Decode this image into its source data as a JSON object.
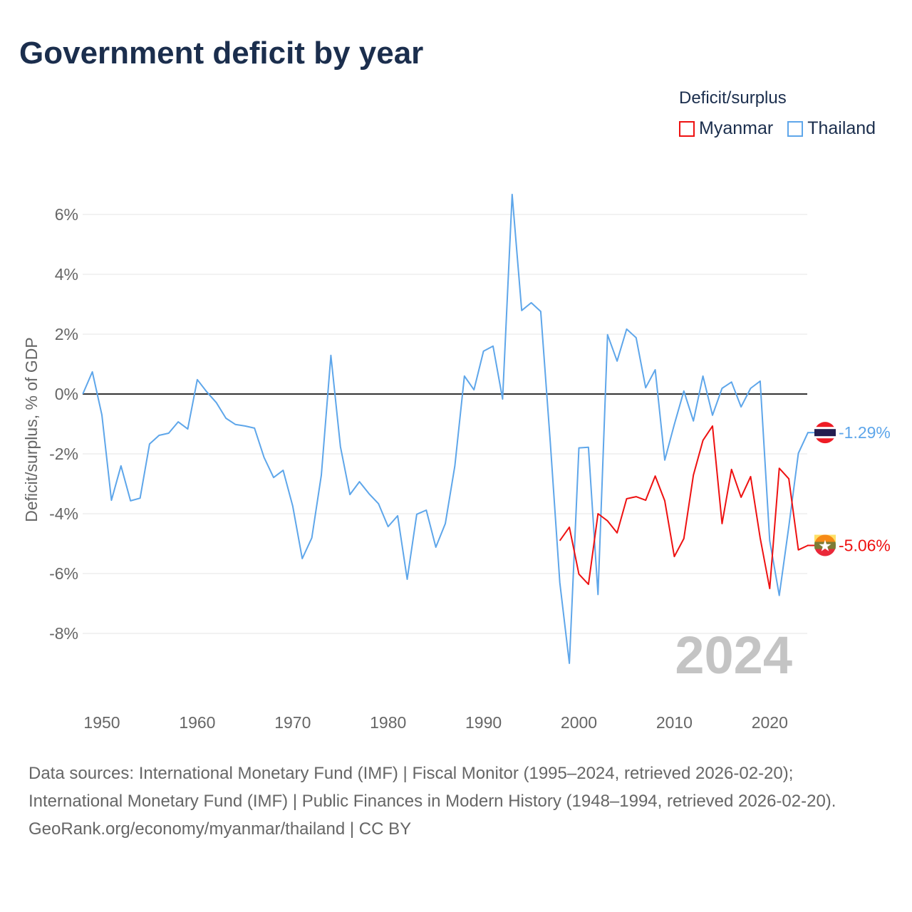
{
  "title": "Government deficit by year",
  "legend": {
    "title": "Deficit/surplus",
    "items": [
      {
        "name": "Myanmar",
        "color": "#ee1111"
      },
      {
        "name": "Thailand",
        "color": "#5ea6ea"
      }
    ]
  },
  "footer": {
    "sources": "Data sources: International Monetary Fund (IMF) | Fiscal Monitor (1995–2024, retrieved 2026-02-20); International Monetary Fund (IMF) | Public Finances in Modern History (1948–1994, retrieved 2026-02-20).",
    "credit": "GeoRank.org/economy/myanmar/thailand | CC BY"
  },
  "chart_data": {
    "type": "line",
    "title": "Government deficit by year",
    "ylabel": "Deficit/surplus, % of GDP",
    "xlabel": "",
    "xlim": [
      1948,
      2024
    ],
    "ylim": [
      -10,
      7
    ],
    "x_ticks": [
      "1950",
      "1960",
      "1970",
      "1980",
      "1990",
      "2000",
      "2010",
      "2020"
    ],
    "y_ticks": [
      {
        "value": 6,
        "label": "6%"
      },
      {
        "value": 4,
        "label": "4%"
      },
      {
        "value": 2,
        "label": "2%"
      },
      {
        "value": 0,
        "label": "0%"
      },
      {
        "value": -2,
        "label": "-2%"
      },
      {
        "value": -4,
        "label": "-4%"
      },
      {
        "value": -6,
        "label": "-6%"
      },
      {
        "value": -8,
        "label": "-8%"
      }
    ],
    "year_watermark": "2024",
    "grid": true,
    "legend_position": "top-right",
    "series": [
      {
        "name": "Thailand",
        "color": "#5ea6ea",
        "end_label": "-1.29%",
        "start_year": 1948,
        "values": [
          0,
          0.74,
          -0.7,
          -3.55,
          -2.4,
          -3.57,
          -3.48,
          -1.67,
          -1.38,
          -1.31,
          -0.93,
          -1.17,
          0.48,
          0.07,
          -0.29,
          -0.81,
          -1.02,
          -1.07,
          -1.14,
          -2.12,
          -2.79,
          -2.55,
          -3.74,
          -5.5,
          -4.81,
          -2.71,
          1.29,
          -1.76,
          -3.36,
          -2.93,
          -3.33,
          -3.67,
          -4.43,
          -4.07,
          -6.19,
          -4.02,
          -3.88,
          -5.12,
          -4.33,
          -2.4,
          0.6,
          0.14,
          1.43,
          1.6,
          -0.17,
          6.67,
          2.79,
          3.05,
          2.76,
          -1.6,
          -6.3,
          -9.0,
          -1.8,
          -1.78,
          -6.7,
          1.98,
          1.1,
          2.17,
          1.88,
          0.21,
          0.81,
          -2.21,
          -1.02,
          0.1,
          -0.9,
          0.6,
          -0.71,
          0.19,
          0.4,
          -0.43,
          0.19,
          0.43,
          -4.9,
          -6.73,
          -4.43,
          -1.98,
          -1.29
        ]
      },
      {
        "name": "Myanmar",
        "color": "#ee1111",
        "end_label": "-5.06%",
        "start_year": 1998,
        "values": [
          -4.9,
          -4.45,
          -6.02,
          -6.36,
          -4.0,
          -4.24,
          -4.64,
          -3.5,
          -3.43,
          -3.55,
          -2.74,
          -3.57,
          -5.43,
          -4.83,
          -2.71,
          -1.55,
          -1.07,
          -4.33,
          -2.52,
          -3.45,
          -2.76,
          -4.81,
          -6.5,
          -2.48,
          -2.83,
          -5.21,
          -5.06
        ]
      }
    ]
  }
}
